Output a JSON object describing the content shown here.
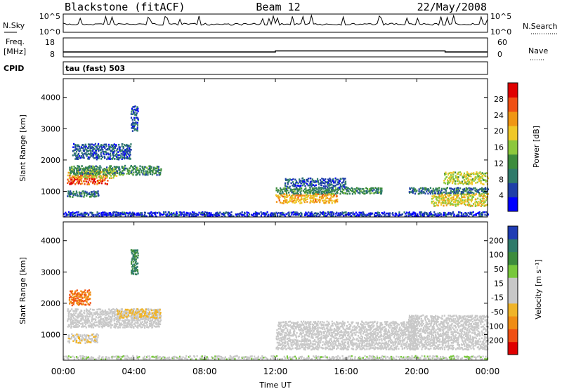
{
  "header": {
    "station": "Blackstone (fitACF)",
    "beam": "Beam 12",
    "date": "22/May/2008"
  },
  "side_labels": {
    "nsky": "N.Sky",
    "nsearch": "N.Search",
    "freq_line1": "Freq.",
    "freq_line2": "[MHz]",
    "nave": "Nave",
    "cpid": "CPID",
    "cpid_value": "tau (fast) 503"
  },
  "top_panels": {
    "noise_ticks": [
      "10^5",
      "10^0"
    ],
    "noise_right_ticks": [
      "10^5",
      "10^0"
    ],
    "freq_ticks": [
      "18",
      "8"
    ],
    "nave_ticks": [
      "60",
      "0"
    ]
  },
  "colors": {
    "power_scale": [
      "#0000ff",
      "#1f3fa8",
      "#2f7a6a",
      "#3c8c3c",
      "#8cc83c",
      "#f0c828",
      "#f09614",
      "#f05014",
      "#e00000"
    ],
    "velocity_scale": [
      "#1f3cb4",
      "#2f7a6a",
      "#3c8c3c",
      "#78c83c",
      "#c8c8c8",
      "#c8c8c8",
      "#f0b428",
      "#f08c14",
      "#f05014",
      "#e00000"
    ]
  },
  "chart_data": [
    {
      "type": "heatmap",
      "name": "power",
      "ylabel": "Slant Range [km]",
      "xlabel": "Time UT",
      "x_ticks": [
        "00:00",
        "04:00",
        "08:00",
        "12:00",
        "16:00",
        "20:00",
        "00:00"
      ],
      "y_ticks": [
        1000,
        2000,
        3000,
        4000
      ],
      "ylim": [
        180,
        4600
      ],
      "colorbar_label": "Power [dB]",
      "colorbar_ticks": [
        "28",
        "24",
        "20",
        "16",
        "12",
        "8",
        "4"
      ],
      "colorbar_range": [
        0,
        30
      ],
      "regions": [
        {
          "t0": 0.2,
          "t1": 2.5,
          "r0": 1200,
          "r1": 1500,
          "level": 26
        },
        {
          "t0": 0.2,
          "t1": 3.0,
          "r0": 1400,
          "r1": 1700,
          "level": 18
        },
        {
          "t0": 0.3,
          "t1": 5.5,
          "r0": 1500,
          "r1": 1800,
          "level": 10
        },
        {
          "t0": 0.2,
          "t1": 2.0,
          "r0": 800,
          "r1": 1000,
          "level": 8
        },
        {
          "t0": 0.5,
          "t1": 3.8,
          "r0": 2000,
          "r1": 2500,
          "level": 6
        },
        {
          "t0": 3.8,
          "t1": 4.2,
          "r0": 2900,
          "r1": 3700,
          "level": 6
        },
        {
          "t0": 12.0,
          "t1": 15.5,
          "r0": 600,
          "r1": 900,
          "level": 20
        },
        {
          "t0": 12.0,
          "t1": 18.0,
          "r0": 900,
          "r1": 1100,
          "level": 10
        },
        {
          "t0": 12.5,
          "t1": 16.0,
          "r0": 1100,
          "r1": 1400,
          "level": 6
        },
        {
          "t0": 20.8,
          "t1": 24.0,
          "r0": 500,
          "r1": 900,
          "level": 18
        },
        {
          "t0": 21.5,
          "t1": 24.0,
          "r0": 1200,
          "r1": 1600,
          "level": 16
        },
        {
          "t0": 19.5,
          "t1": 24.0,
          "r0": 900,
          "r1": 1100,
          "level": 8
        },
        {
          "t0": 0.0,
          "t1": 24.0,
          "r0": 180,
          "r1": 320,
          "level": 4
        }
      ]
    },
    {
      "type": "heatmap",
      "name": "velocity",
      "ylabel": "Slant Range [km]",
      "xlabel": "Time UT",
      "x_ticks": [
        "00:00",
        "04:00",
        "08:00",
        "12:00",
        "16:00",
        "20:00",
        "00:00"
      ],
      "y_ticks": [
        1000,
        2000,
        3000,
        4000
      ],
      "ylim": [
        180,
        4600
      ],
      "colorbar_label": "Velocity [m s⁻¹]",
      "colorbar_ticks": [
        "200",
        "100",
        "50",
        "15",
        "-15",
        "-50",
        "-100",
        "-200"
      ],
      "colorbar_range": [
        -250,
        250
      ],
      "regions": [
        {
          "t0": 0.2,
          "t1": 5.5,
          "r0": 1200,
          "r1": 1800,
          "level": 0
        },
        {
          "t0": 0.3,
          "t1": 1.5,
          "r0": 1900,
          "r1": 2400,
          "level": -150
        },
        {
          "t0": 3.0,
          "t1": 5.5,
          "r0": 1500,
          "r1": 1800,
          "level": -60
        },
        {
          "t0": 0.2,
          "t1": 2.0,
          "r0": 700,
          "r1": 1000,
          "level": -40
        },
        {
          "t0": 3.8,
          "t1": 4.2,
          "r0": 2900,
          "r1": 3700,
          "level": 150
        },
        {
          "t0": 12.0,
          "t1": 20.0,
          "r0": 500,
          "r1": 1400,
          "level": 0
        },
        {
          "t0": 19.5,
          "t1": 24.0,
          "r0": 500,
          "r1": 1600,
          "level": 0
        },
        {
          "t0": 0.0,
          "t1": 24.0,
          "r0": 180,
          "r1": 300,
          "level": 40
        }
      ]
    }
  ]
}
